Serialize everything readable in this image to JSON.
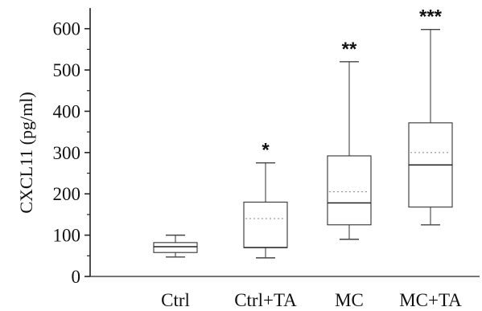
{
  "chart_data": {
    "type": "box",
    "ylabel": "CXCL11 (pg/ml)",
    "xlabel": "",
    "ylim": [
      0,
      650
    ],
    "yticks": [
      0,
      100,
      200,
      300,
      400,
      500,
      600
    ],
    "categories": [
      "Ctrl",
      "Ctrl+TA",
      "MC",
      "MC+TA"
    ],
    "boxes": [
      {
        "category": "Ctrl",
        "whisker_low": 47,
        "q1": 58,
        "median": 72,
        "q3": 82,
        "whisker_high": 100,
        "significance": "",
        "dotted_line": null
      },
      {
        "category": "Ctrl+TA",
        "whisker_low": 45,
        "q1": 70,
        "median": 70,
        "q3": 180,
        "whisker_high": 275,
        "significance": "*",
        "dotted_line": 140
      },
      {
        "category": "MC",
        "whisker_low": 90,
        "q1": 125,
        "median": 178,
        "q3": 292,
        "whisker_high": 520,
        "significance": "**",
        "dotted_line": 205
      },
      {
        "category": "MC+TA",
        "whisker_low": 125,
        "q1": 168,
        "median": 270,
        "q3": 372,
        "whisker_high": 598,
        "significance": "***",
        "dotted_line": 300
      }
    ],
    "grid": false,
    "colors": {
      "axis": "#222222",
      "box": "#333333",
      "whisker": "#444444",
      "median": "#222222",
      "dotted": "#888888"
    }
  }
}
